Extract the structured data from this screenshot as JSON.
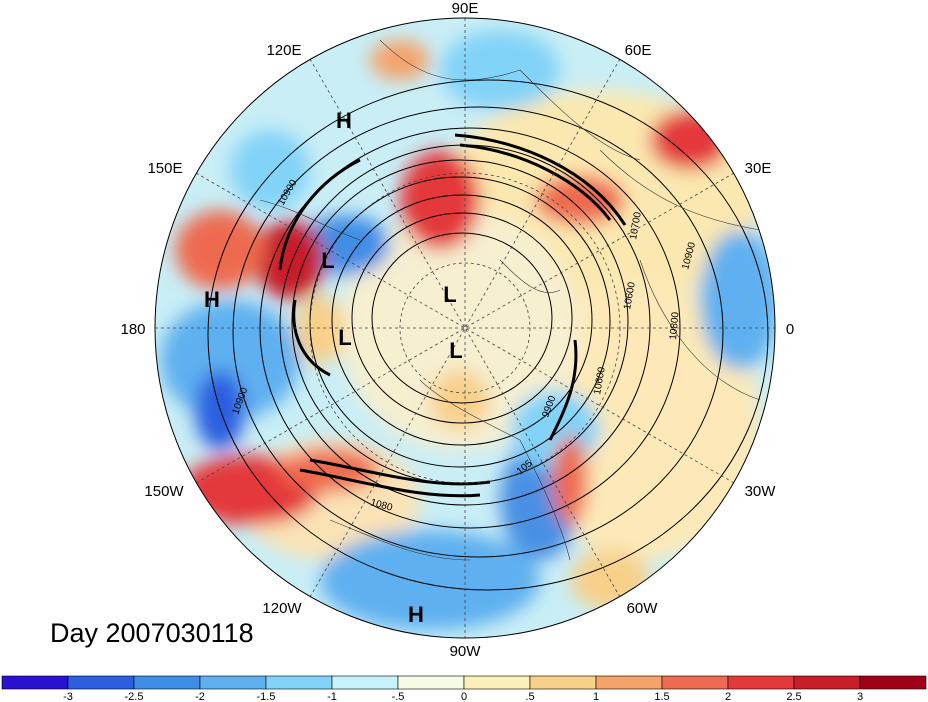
{
  "map": {
    "projection": "polar stereographic (north pole)",
    "day_label": "Day 2007030118",
    "longitude_labels": [
      {
        "text": "90E",
        "lon": 90
      },
      {
        "text": "60E",
        "lon": 60
      },
      {
        "text": "30E",
        "lon": 30
      },
      {
        "text": "0",
        "lon": 0
      },
      {
        "text": "30W",
        "lon": -30
      },
      {
        "text": "60W",
        "lon": -60
      },
      {
        "text": "90W",
        "lon": -90
      },
      {
        "text": "120W",
        "lon": -120
      },
      {
        "text": "150W",
        "lon": -150
      },
      {
        "text": "180",
        "lon": 180
      },
      {
        "text": "150E",
        "lon": 150
      },
      {
        "text": "120E",
        "lon": 120
      }
    ],
    "pressure_centers": [
      {
        "text": "H",
        "id": "h1"
      },
      {
        "text": "H",
        "id": "h2"
      },
      {
        "text": "H",
        "id": "h3"
      },
      {
        "text": "L",
        "id": "l1"
      },
      {
        "text": "L",
        "id": "l2"
      },
      {
        "text": "L",
        "id": "l3"
      },
      {
        "text": "L",
        "id": "l4"
      }
    ],
    "contour_labels": [
      "10900",
      "10700",
      "10600",
      "10800",
      "10900",
      "10600",
      "9900",
      "10900",
      "1080",
      "105"
    ],
    "colors": {
      "neg_strong": "#1a1ad6",
      "neg_mid": "#4aa0ea",
      "neg_light": "#a8ecf8",
      "neutral": "#fdfbe0",
      "pos_light": "#f8d08a",
      "pos_mid": "#ee4a3c",
      "pos_strong": "#a8091b"
    }
  },
  "colorbar": {
    "ticks": [
      "-3",
      "-2.5",
      "-2",
      "-1.5",
      "-1",
      "-.5",
      "0",
      ".5",
      "1",
      "1.5",
      "2",
      "2.5",
      "3"
    ],
    "colors": [
      "#2a10d0",
      "#2c5fe0",
      "#3f8ee6",
      "#5fb0f0",
      "#82d3f8",
      "#c6f3fb",
      "#f6fbe6",
      "#fbf0b8",
      "#f8d08a",
      "#f4a36a",
      "#ee6a50",
      "#e4393a",
      "#c81e2a",
      "#a00018"
    ]
  }
}
